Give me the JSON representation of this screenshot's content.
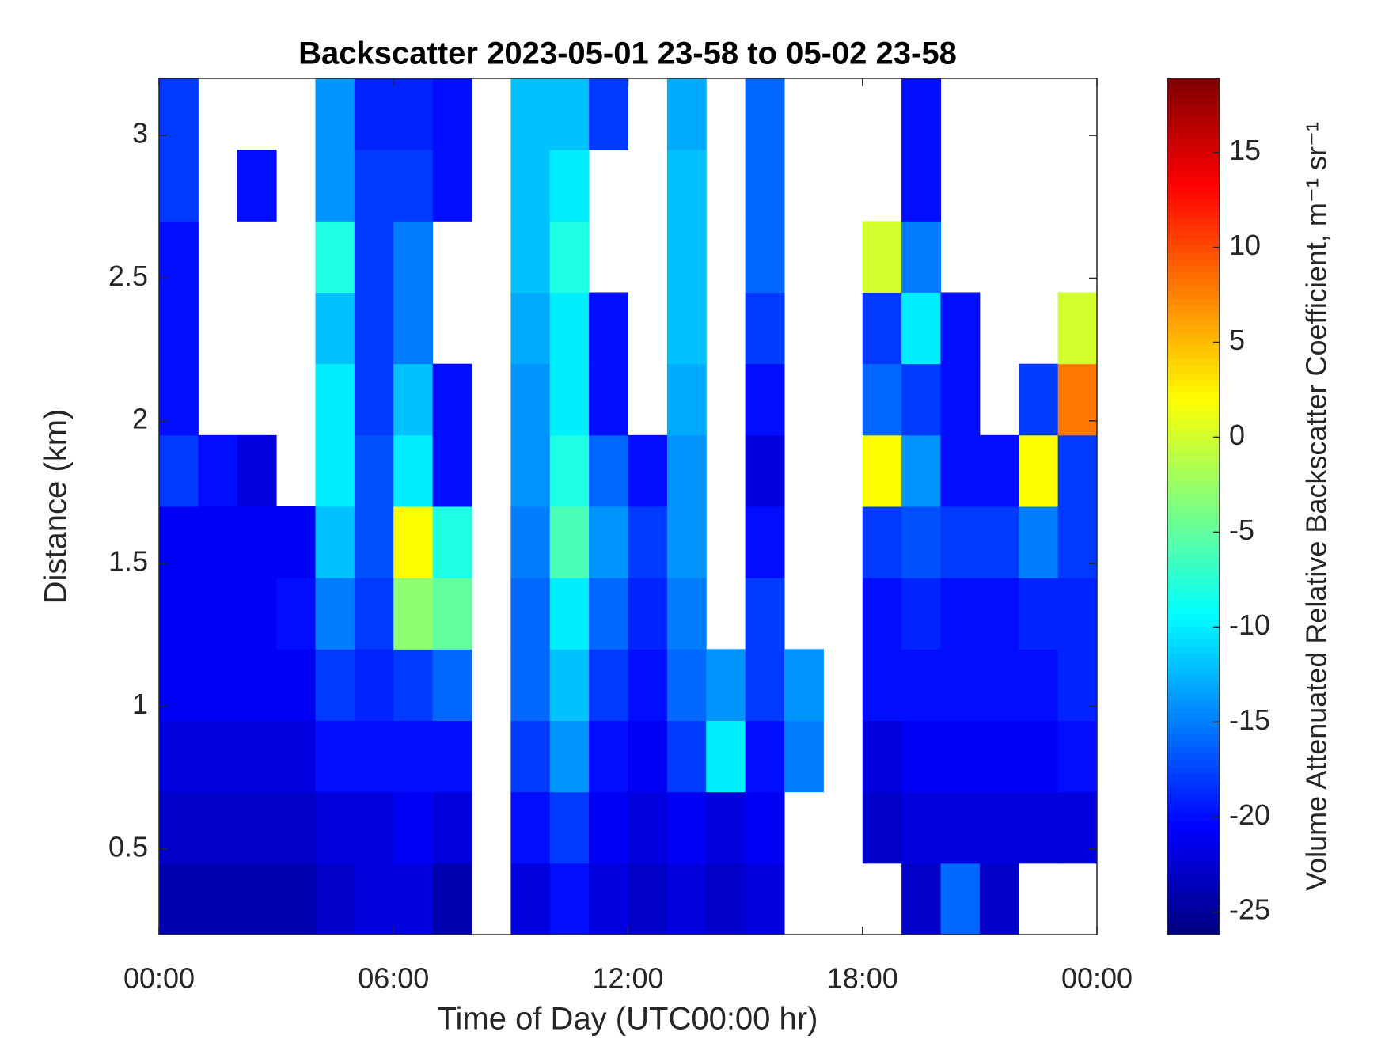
{
  "chart_data": {
    "type": "heatmap",
    "title": "Backscatter 2023-05-01 23-58 to 05-02 23-58",
    "xlabel": "Time of Day (UTC00:00 hr)",
    "ylabel": "Distance (km)",
    "colorbar_label": "Volume Attenuated Relative Backscatter Coefficient, m⁻¹ sr⁻¹",
    "colormap": "jet",
    "x": [
      0.5,
      1.5,
      2.5,
      3.5,
      4.5,
      5.5,
      6.5,
      7.5,
      8.5,
      9.5,
      10.5,
      11.5,
      12.5,
      13.5,
      14.5,
      15.5,
      16.5,
      17.5,
      18.5,
      19.5,
      20.5,
      21.5,
      22.5,
      23.5
    ],
    "y": [
      0.325,
      0.575,
      0.825,
      1.075,
      1.325,
      1.575,
      1.825,
      2.075,
      2.325,
      2.575,
      2.825,
      3.075
    ],
    "z": [
      [
        -24,
        -24,
        -24,
        -24,
        -23,
        -22,
        -22,
        -24,
        null,
        -22,
        -20,
        -22,
        -23,
        -22,
        -23,
        -22,
        null,
        null,
        null,
        -23,
        -16,
        -23,
        null,
        null
      ],
      [
        -23,
        -23,
        -23,
        -23,
        -22,
        -22,
        -21,
        -22,
        null,
        -20,
        -18,
        -21,
        -22,
        -21,
        -22,
        -21,
        null,
        null,
        -23,
        -22,
        -22,
        -22,
        -22,
        -22
      ],
      [
        -22,
        -22,
        -22,
        -22,
        -20,
        -20,
        -20,
        -20,
        null,
        -18,
        -14,
        -20,
        -21,
        -18,
        -10,
        -20,
        -15,
        null,
        -22,
        -21,
        -21,
        -21,
        -21,
        -20
      ],
      [
        -21,
        -21,
        -21,
        -21,
        -18,
        -19,
        -18,
        -16,
        null,
        -16,
        -12,
        -18,
        -20,
        -16,
        -14,
        -18,
        -14,
        null,
        -20,
        -20,
        -20,
        -20,
        -20,
        -19
      ],
      [
        -21,
        -21,
        -21,
        -20,
        -15,
        -18,
        -3,
        -5,
        null,
        -16,
        -10,
        -16,
        -19,
        -15,
        null,
        -18,
        null,
        null,
        -20,
        -19,
        -20,
        -20,
        -19,
        -19
      ],
      [
        -21,
        -21,
        -21,
        -21,
        -12,
        -17,
        2,
        -8,
        null,
        -15,
        -6,
        -14,
        -18,
        -14,
        null,
        -20,
        null,
        null,
        -18,
        -17,
        -18,
        -18,
        -15,
        -18
      ],
      [
        -18,
        -20,
        -22,
        null,
        -10,
        -17,
        -10,
        -20,
        null,
        -14,
        -8,
        -16,
        -20,
        -14,
        null,
        -22,
        null,
        null,
        2,
        -14,
        -20,
        -20,
        2,
        -18
      ],
      [
        -20,
        null,
        null,
        null,
        -10,
        -18,
        -12,
        -20,
        null,
        -14,
        -10,
        -20,
        null,
        -13,
        null,
        -20,
        null,
        null,
        -16,
        -18,
        -20,
        null,
        -18,
        8
      ],
      [
        -20,
        null,
        null,
        null,
        -12,
        -18,
        -15,
        null,
        null,
        -13,
        -10,
        -20,
        null,
        -12,
        null,
        -18,
        null,
        null,
        -18,
        -10,
        -20,
        null,
        null,
        0
      ],
      [
        -20,
        null,
        null,
        null,
        -8,
        -18,
        -15,
        null,
        null,
        -12,
        -8,
        null,
        null,
        -12,
        null,
        -16,
        null,
        null,
        0,
        -15,
        null,
        null,
        null,
        null
      ],
      [
        -18,
        null,
        -20,
        null,
        -14,
        -18,
        -18,
        -20,
        null,
        -12,
        -10,
        null,
        null,
        -12,
        null,
        -16,
        null,
        null,
        null,
        -20,
        null,
        null,
        null,
        null
      ],
      [
        -18,
        null,
        null,
        null,
        -14,
        -19,
        -19,
        -20,
        null,
        -12,
        -12,
        -18,
        null,
        -13,
        null,
        -16,
        null,
        null,
        null,
        -20,
        null,
        null,
        null,
        null
      ]
    ],
    "xlim": [
      0,
      24
    ],
    "xticks": [
      {
        "value": 0,
        "label": "00:00"
      },
      {
        "value": 6,
        "label": "06:00"
      },
      {
        "value": 12,
        "label": "12:00"
      },
      {
        "value": 18,
        "label": "18:00"
      },
      {
        "value": 24,
        "label": "00:00"
      }
    ],
    "ylim": [
      0.2,
      3.2
    ],
    "yticks": [
      0.5,
      1,
      1.5,
      2,
      2.5,
      3
    ],
    "zlim": [
      -26.2,
      18.9
    ],
    "zticks": [
      -25,
      -20,
      -15,
      -10,
      -5,
      0,
      5,
      10,
      15
    ]
  }
}
